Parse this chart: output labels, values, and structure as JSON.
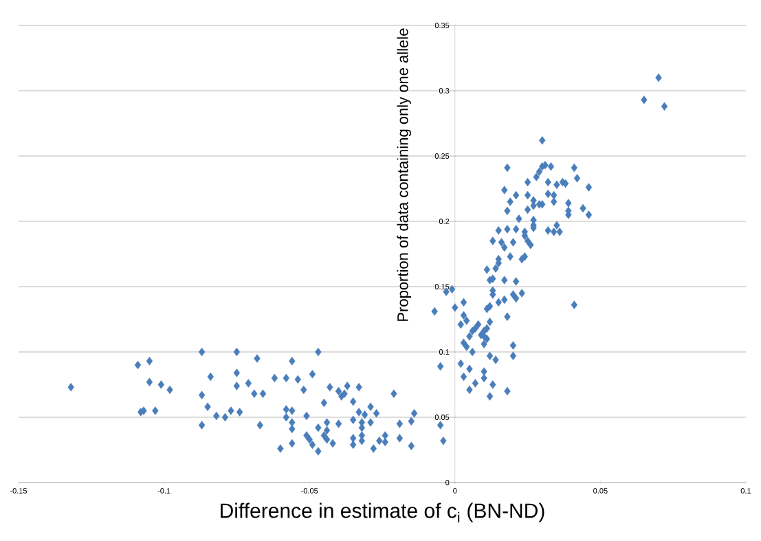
{
  "chart_data": {
    "type": "scatter",
    "xlabel": "Difference in estimate of c$_{i}$ (BN-ND)",
    "ylabel": "Proportion of data containing only one allele",
    "xlim": [
      -0.15,
      0.1
    ],
    "xticks": [
      -0.15,
      -0.1,
      -0.05,
      0,
      0.05,
      0.1
    ],
    "ylim": [
      0,
      0.35
    ],
    "yticks": [
      0,
      0.05,
      0.1,
      0.15,
      0.2,
      0.25,
      0.3,
      0.35
    ],
    "grid": "y",
    "marker": "diamond",
    "color": "#4a7ebb",
    "x": [
      -0.132,
      -0.109,
      -0.105,
      -0.105,
      -0.101,
      -0.098,
      -0.108,
      -0.107,
      -0.103,
      -0.087,
      -0.075,
      -0.068,
      -0.084,
      -0.075,
      -0.075,
      -0.071,
      -0.069,
      -0.066,
      -0.087,
      -0.085,
      -0.082,
      -0.079,
      -0.077,
      -0.074,
      -0.087,
      -0.067,
      -0.062,
      -0.058,
      -0.056,
      -0.054,
      -0.049,
      -0.047,
      -0.052,
      -0.043,
      -0.037,
      -0.033,
      -0.04,
      -0.038,
      -0.039,
      -0.021,
      -0.035,
      -0.045,
      -0.058,
      -0.056,
      -0.058,
      -0.051,
      -0.033,
      -0.031,
      -0.029,
      -0.027,
      -0.014,
      -0.056,
      -0.056,
      -0.044,
      -0.04,
      -0.035,
      -0.032,
      -0.029,
      -0.032,
      -0.047,
      -0.044,
      -0.019,
      -0.015,
      -0.005,
      -0.051,
      -0.05,
      -0.045,
      -0.044,
      -0.035,
      -0.032,
      -0.032,
      -0.024,
      -0.026,
      -0.024,
      -0.019,
      -0.004,
      -0.056,
      -0.049,
      -0.042,
      -0.035,
      -0.06,
      -0.047,
      -0.028,
      -0.015,
      -0.005,
      -0.003,
      -0.001,
      -0.007,
      0.0,
      0.003,
      0.002,
      0.003,
      0.005,
      0.005,
      0.007,
      0.01,
      0.01,
      0.012,
      0.013,
      0.018,
      0.014,
      0.02,
      0.02,
      0.012,
      0.002,
      0.003,
      0.004,
      0.003,
      0.004,
      0.005,
      0.006,
      0.007,
      0.008,
      0.006,
      0.009,
      0.01,
      0.011,
      0.012,
      0.011,
      0.012,
      0.01,
      0.011,
      0.01,
      0.013,
      0.013,
      0.012,
      0.013,
      0.011,
      0.014,
      0.015,
      0.017,
      0.021,
      0.015,
      0.017,
      0.018,
      0.02,
      0.021,
      0.023,
      0.03,
      0.018,
      0.03,
      0.031,
      0.033,
      0.029,
      0.028,
      0.041,
      0.042,
      0.025,
      0.032,
      0.035,
      0.037,
      0.038,
      0.046,
      0.017,
      0.021,
      0.025,
      0.032,
      0.034,
      0.034,
      0.019,
      0.027,
      0.018,
      0.025,
      0.027,
      0.029,
      0.03,
      0.039,
      0.039,
      0.039,
      0.044,
      0.046,
      0.022,
      0.027,
      0.027,
      0.027,
      0.035,
      0.032,
      0.034,
      0.036,
      0.015,
      0.018,
      0.021,
      0.024,
      0.024,
      0.025,
      0.026,
      0.013,
      0.016,
      0.017,
      0.02,
      0.015,
      0.019,
      0.023,
      0.024,
      0.07,
      0.065,
      0.072,
      0.041
    ],
    "values": [
      0.073,
      0.09,
      0.093,
      0.077,
      0.075,
      0.071,
      0.054,
      0.055,
      0.055,
      0.1,
      0.1,
      0.095,
      0.081,
      0.084,
      0.074,
      0.076,
      0.068,
      0.068,
      0.067,
      0.058,
      0.051,
      0.05,
      0.055,
      0.054,
      0.044,
      0.044,
      0.08,
      0.08,
      0.093,
      0.079,
      0.083,
      0.1,
      0.071,
      0.073,
      0.074,
      0.073,
      0.07,
      0.068,
      0.066,
      0.068,
      0.062,
      0.061,
      0.056,
      0.055,
      0.05,
      0.051,
      0.054,
      0.052,
      0.058,
      0.053,
      0.053,
      0.046,
      0.041,
      0.046,
      0.045,
      0.048,
      0.046,
      0.046,
      0.042,
      0.042,
      0.04,
      0.045,
      0.047,
      0.044,
      0.036,
      0.033,
      0.036,
      0.033,
      0.034,
      0.036,
      0.032,
      0.036,
      0.032,
      0.031,
      0.034,
      0.032,
      0.03,
      0.029,
      0.03,
      0.029,
      0.026,
      0.024,
      0.026,
      0.028,
      0.089,
      0.146,
      0.148,
      0.131,
      0.134,
      0.138,
      0.091,
      0.081,
      0.087,
      0.071,
      0.076,
      0.085,
      0.08,
      0.066,
      0.075,
      0.07,
      0.094,
      0.105,
      0.097,
      0.097,
      0.121,
      0.128,
      0.124,
      0.107,
      0.104,
      0.112,
      0.116,
      0.118,
      0.121,
      0.1,
      0.113,
      0.116,
      0.118,
      0.123,
      0.133,
      0.135,
      0.106,
      0.11,
      0.112,
      0.144,
      0.147,
      0.155,
      0.156,
      0.163,
      0.164,
      0.168,
      0.155,
      0.154,
      0.138,
      0.14,
      0.127,
      0.144,
      0.141,
      0.145,
      0.262,
      0.241,
      0.242,
      0.243,
      0.242,
      0.238,
      0.234,
      0.241,
      0.233,
      0.23,
      0.23,
      0.228,
      0.23,
      0.229,
      0.226,
      0.224,
      0.22,
      0.22,
      0.221,
      0.22,
      0.215,
      0.215,
      0.216,
      0.208,
      0.209,
      0.212,
      0.213,
      0.213,
      0.214,
      0.208,
      0.205,
      0.21,
      0.205,
      0.202,
      0.201,
      0.197,
      0.195,
      0.197,
      0.193,
      0.192,
      0.192,
      0.193,
      0.194,
      0.194,
      0.192,
      0.189,
      0.185,
      0.182,
      0.185,
      0.184,
      0.18,
      0.184,
      0.171,
      0.173,
      0.171,
      0.173,
      0.31,
      0.293,
      0.288,
      0.136
    ]
  }
}
